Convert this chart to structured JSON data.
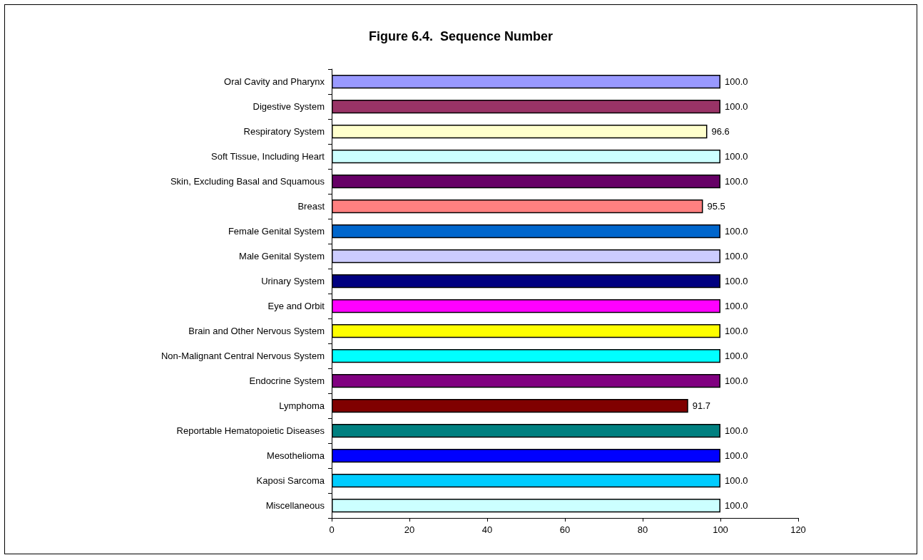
{
  "chart_data": {
    "type": "bar",
    "orientation": "horizontal",
    "title": "Figure 6.4.  Sequence Number",
    "categories": [
      "Oral Cavity and Pharynx",
      "Digestive System",
      "Respiratory System",
      "Soft Tissue, Including Heart",
      "Skin, Excluding Basal and Squamous",
      "Breast",
      "Female Genital System",
      "Male Genital System",
      "Urinary System",
      "Eye and Orbit",
      "Brain and Other Nervous System",
      "Non-Malignant Central Nervous System",
      "Endocrine System",
      "Lymphoma",
      "Reportable Hematopoietic Diseases",
      "Mesothelioma",
      "Kaposi Sarcoma",
      "Miscellaneous"
    ],
    "values": [
      100.0,
      100.0,
      96.6,
      100.0,
      100.0,
      95.5,
      100.0,
      100.0,
      100.0,
      100.0,
      100.0,
      100.0,
      100.0,
      91.7,
      100.0,
      100.0,
      100.0,
      100.0
    ],
    "value_labels": [
      "100.0",
      "100.0",
      "96.6",
      "100.0",
      "100.0",
      "95.5",
      "100.0",
      "100.0",
      "100.0",
      "100.0",
      "100.0",
      "100.0",
      "100.0",
      "91.7",
      "100.0",
      "100.0",
      "100.0",
      "100.0"
    ],
    "colors": [
      "#9999ff",
      "#993366",
      "#ffffcc",
      "#ccffff",
      "#660066",
      "#ff8080",
      "#0066cc",
      "#ccccff",
      "#000080",
      "#ff00ff",
      "#ffff00",
      "#00ffff",
      "#800080",
      "#800000",
      "#008080",
      "#0000ff",
      "#00ccff",
      "#ccffff"
    ],
    "xlim": [
      0,
      120
    ],
    "xticks": [
      0,
      20,
      40,
      60,
      80,
      100,
      120
    ],
    "grid": false
  }
}
